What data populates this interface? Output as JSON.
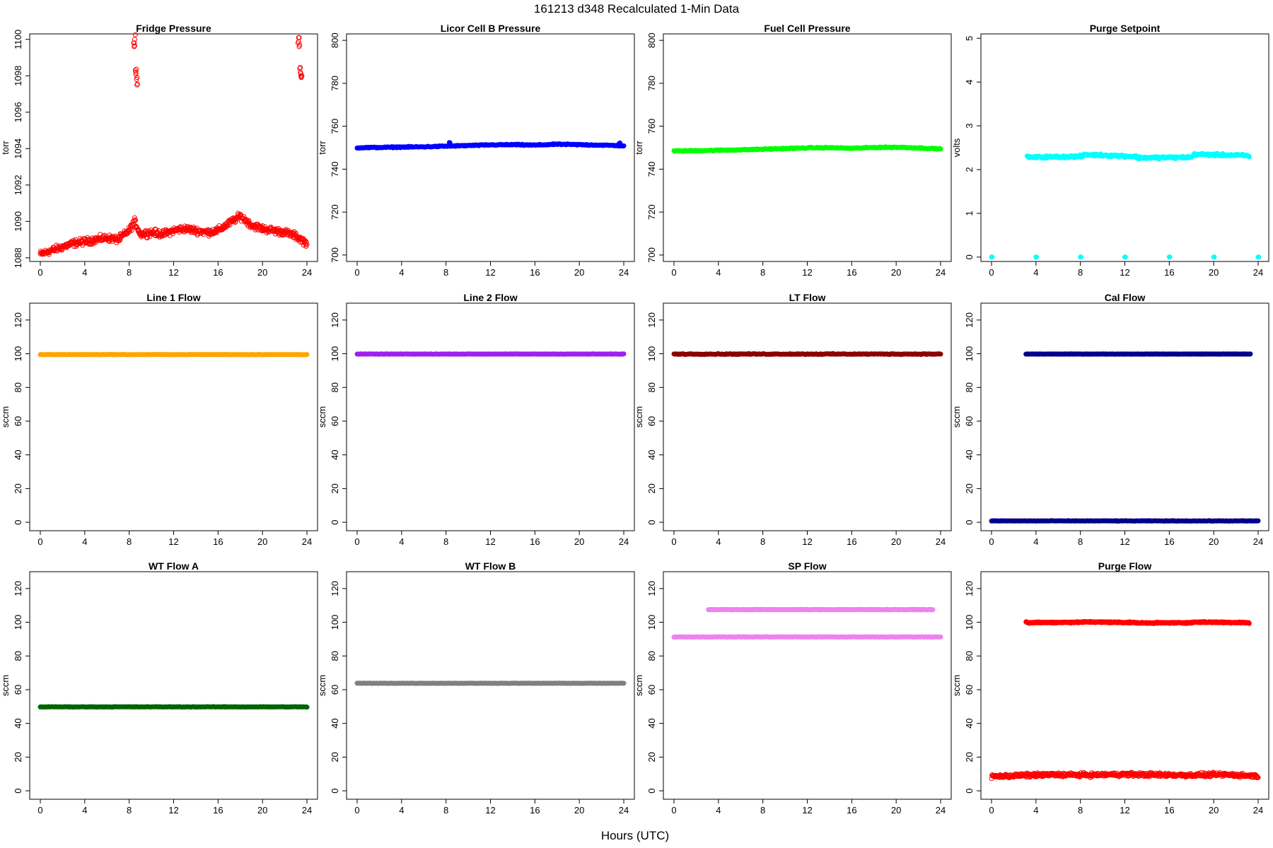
{
  "title": "161213   d348   Recalculated 1-Min Data",
  "xlabel": "Hours (UTC)",
  "chart_data": [
    {
      "type": "scatter",
      "title": "Fridge Pressure",
      "ylabel": "torr",
      "xlim": [
        0,
        24
      ],
      "ylim": [
        1087.8,
        1100.3
      ],
      "xticks": [
        0,
        4,
        8,
        12,
        16,
        20,
        24
      ],
      "yticks": [
        1088,
        1090,
        1092,
        1094,
        1096,
        1098,
        1100
      ],
      "color": "#ff0000",
      "marker": "open",
      "series": [
        {
          "x": [
            0,
            1,
            2,
            3,
            4,
            5,
            6,
            7,
            8,
            8.5,
            9,
            10,
            11,
            12,
            13,
            14,
            15,
            16,
            17,
            18,
            19,
            20,
            21,
            22,
            23,
            23.5,
            24
          ],
          "y": [
            1088.2,
            1088.4,
            1088.6,
            1088.8,
            1088.9,
            1089.0,
            1089.1,
            1089.0,
            1089.5,
            1090.0,
            1089.3,
            1089.4,
            1089.3,
            1089.5,
            1089.6,
            1089.5,
            1089.4,
            1089.5,
            1089.9,
            1090.3,
            1089.8,
            1089.6,
            1089.5,
            1089.4,
            1089.2,
            1089.0,
            1088.8
          ]
        },
        {
          "x": [
            8.4,
            8.45,
            8.5,
            8.55,
            8.6,
            8.65,
            8.7
          ],
          "y": [
            1099.8,
            1099.6,
            1100.0,
            1098.3,
            1098.2,
            1097.8,
            1097.5
          ]
        },
        {
          "x": [
            23.2,
            23.25,
            23.3,
            23.35,
            23.4,
            23.45,
            23.5
          ],
          "y": [
            1099.8,
            1100.1,
            1099.6,
            1098.4,
            1098.2,
            1098.0,
            1097.9
          ]
        }
      ]
    },
    {
      "type": "scatter",
      "title": "Licor Cell B Pressure",
      "ylabel": "torr",
      "xlim": [
        0,
        24
      ],
      "ylim": [
        697,
        803
      ],
      "xticks": [
        0,
        4,
        8,
        12,
        16,
        20,
        24
      ],
      "yticks": [
        700,
        720,
        740,
        760,
        780,
        800
      ],
      "color": "#0000ff",
      "marker": "filled",
      "series": [
        {
          "x": [
            0,
            2,
            4,
            6,
            8,
            10,
            12,
            14,
            16,
            18,
            20,
            22,
            24
          ],
          "y": [
            750.0,
            750.1,
            750.3,
            750.4,
            750.7,
            751.0,
            751.3,
            751.4,
            751.2,
            751.6,
            751.4,
            751.2,
            750.9
          ]
        },
        {
          "x": [
            8.3,
            23.6
          ],
          "y": [
            752.4,
            752.0
          ]
        }
      ]
    },
    {
      "type": "scatter",
      "title": "Fuel Cell Pressure",
      "ylabel": "torr",
      "xlim": [
        0,
        24
      ],
      "ylim": [
        697,
        803
      ],
      "xticks": [
        0,
        4,
        8,
        12,
        16,
        20,
        24
      ],
      "yticks": [
        700,
        720,
        740,
        760,
        780,
        800
      ],
      "color": "#00ff00",
      "marker": "filled",
      "series": [
        {
          "x": [
            0,
            2,
            4,
            6,
            8,
            10,
            12,
            14,
            16,
            18,
            20,
            22,
            24
          ],
          "y": [
            748.5,
            748.6,
            748.8,
            749.0,
            749.3,
            749.6,
            749.9,
            750.0,
            749.7,
            750.1,
            750.2,
            749.9,
            749.4
          ]
        }
      ]
    },
    {
      "type": "scatter",
      "title": "Purge Setpoint",
      "ylabel": "volts",
      "xlim": [
        0,
        24
      ],
      "ylim": [
        -0.1,
        5.1
      ],
      "xticks": [
        0,
        4,
        8,
        12,
        16,
        20,
        24
      ],
      "yticks": [
        0,
        1,
        2,
        3,
        4,
        5
      ],
      "color": "#00ffff",
      "marker": "filled",
      "series": [
        {
          "x": [
            0,
            4,
            8,
            12,
            16,
            20,
            24
          ],
          "y": [
            0,
            0,
            0,
            0,
            0,
            0,
            0
          ]
        },
        {
          "x": [
            3.2,
            3.3,
            8.2,
            8.4,
            8.6,
            13.0,
            13.1,
            18.0,
            18.2,
            18.3,
            23.0,
            23.2
          ],
          "y": [
            2.32,
            2.28,
            2.3,
            2.35,
            2.34,
            2.3,
            2.27,
            2.28,
            2.33,
            2.35,
            2.32,
            2.29
          ]
        }
      ]
    },
    {
      "type": "scatter",
      "title": "Line 1 Flow",
      "ylabel": "sccm",
      "xlim": [
        0,
        24
      ],
      "ylim": [
        -5,
        130
      ],
      "xticks": [
        0,
        4,
        8,
        12,
        16,
        20,
        24
      ],
      "yticks": [
        0,
        20,
        40,
        60,
        80,
        100,
        120
      ],
      "color": "#ffa500",
      "marker": "filled",
      "series": [
        {
          "x": [
            0,
            24
          ],
          "y": [
            99.5,
            99.5
          ]
        }
      ]
    },
    {
      "type": "scatter",
      "title": "Line 2 Flow",
      "ylabel": "sccm",
      "xlim": [
        0,
        24
      ],
      "ylim": [
        -5,
        130
      ],
      "xticks": [
        0,
        4,
        8,
        12,
        16,
        20,
        24
      ],
      "yticks": [
        0,
        20,
        40,
        60,
        80,
        100,
        120
      ],
      "color": "#a020f0",
      "marker": "filled",
      "series": [
        {
          "x": [
            0,
            24
          ],
          "y": [
            99.8,
            99.8
          ]
        }
      ]
    },
    {
      "type": "scatter",
      "title": "LT Flow",
      "ylabel": "sccm",
      "xlim": [
        0,
        24
      ],
      "ylim": [
        -5,
        130
      ],
      "xticks": [
        0,
        4,
        8,
        12,
        16,
        20,
        24
      ],
      "yticks": [
        0,
        20,
        40,
        60,
        80,
        100,
        120
      ],
      "color": "#8b0000",
      "marker": "filled",
      "series": [
        {
          "x": [
            0,
            24
          ],
          "y": [
            99.8,
            99.8
          ]
        }
      ]
    },
    {
      "type": "scatter",
      "title": "Cal Flow",
      "ylabel": "sccm",
      "xlim": [
        0,
        24
      ],
      "ylim": [
        -5,
        130
      ],
      "xticks": [
        0,
        4,
        8,
        12,
        16,
        20,
        24
      ],
      "yticks": [
        0,
        20,
        40,
        60,
        80,
        100,
        120
      ],
      "color": "#00008b",
      "marker": "filled",
      "series": [
        {
          "x": [
            0,
            24
          ],
          "y": [
            0.8,
            0.8
          ]
        },
        {
          "x": [
            3.1,
            3.4,
            8.1,
            8.6,
            13.0,
            13.3,
            17.9,
            18.4,
            22.9,
            23.3
          ],
          "y": [
            99.8,
            99.8,
            99.8,
            99.8,
            99.8,
            99.8,
            99.8,
            99.8,
            99.8,
            99.8
          ]
        }
      ]
    },
    {
      "type": "scatter",
      "title": "WT Flow A",
      "ylabel": "sccm",
      "xlim": [
        0,
        24
      ],
      "ylim": [
        -5,
        130
      ],
      "xticks": [
        0,
        4,
        8,
        12,
        16,
        20,
        24
      ],
      "yticks": [
        0,
        20,
        40,
        60,
        80,
        100,
        120
      ],
      "color": "#006400",
      "marker": "filled",
      "series": [
        {
          "x": [
            0,
            24
          ],
          "y": [
            49.8,
            49.8
          ]
        }
      ]
    },
    {
      "type": "scatter",
      "title": "WT Flow B",
      "ylabel": "sccm",
      "xlim": [
        0,
        24
      ],
      "ylim": [
        -5,
        130
      ],
      "xticks": [
        0,
        4,
        8,
        12,
        16,
        20,
        24
      ],
      "yticks": [
        0,
        20,
        40,
        60,
        80,
        100,
        120
      ],
      "color": "#808080",
      "marker": "filled",
      "series": [
        {
          "x": [
            0,
            24
          ],
          "y": [
            63.8,
            63.8
          ]
        }
      ]
    },
    {
      "type": "scatter",
      "title": "SP Flow",
      "ylabel": "sccm",
      "xlim": [
        0,
        24
      ],
      "ylim": [
        -5,
        130
      ],
      "xticks": [
        0,
        4,
        8,
        12,
        16,
        20,
        24
      ],
      "yticks": [
        0,
        20,
        40,
        60,
        80,
        100,
        120
      ],
      "color": "#ee82ee",
      "marker": "filled",
      "series": [
        {
          "x": [
            0,
            24
          ],
          "y": [
            91.3,
            91.3
          ]
        },
        {
          "x": [
            3.1,
            3.4,
            8.1,
            8.6,
            13.0,
            13.3,
            17.9,
            18.4,
            22.9,
            23.3
          ],
          "y": [
            107.5,
            107.5,
            107.5,
            107.5,
            107.5,
            107.5,
            107.5,
            107.5,
            107.5,
            107.5
          ]
        }
      ]
    },
    {
      "type": "scatter",
      "title": "Purge Flow",
      "ylabel": "sccm",
      "xlim": [
        0,
        24
      ],
      "ylim": [
        -5,
        130
      ],
      "xticks": [
        0,
        4,
        8,
        12,
        16,
        20,
        24
      ],
      "yticks": [
        0,
        20,
        40,
        60,
        80,
        100,
        120
      ],
      "color": "#ff0000",
      "marker": "open",
      "series": [
        {
          "x": [
            0,
            3,
            6,
            9,
            12,
            15,
            18,
            21,
            24
          ],
          "y": [
            8.5,
            9.2,
            9.6,
            9.4,
            9.8,
            9.5,
            9.3,
            9.6,
            8.8
          ]
        },
        {
          "x": [
            3.1,
            3.3,
            8.1,
            8.5,
            13.0,
            13.2,
            17.9,
            18.3,
            22.9,
            23.2
          ],
          "y": [
            100.0,
            99.8,
            100.0,
            100.2,
            99.8,
            99.6,
            99.7,
            100.1,
            99.8,
            99.5
          ]
        }
      ]
    }
  ]
}
